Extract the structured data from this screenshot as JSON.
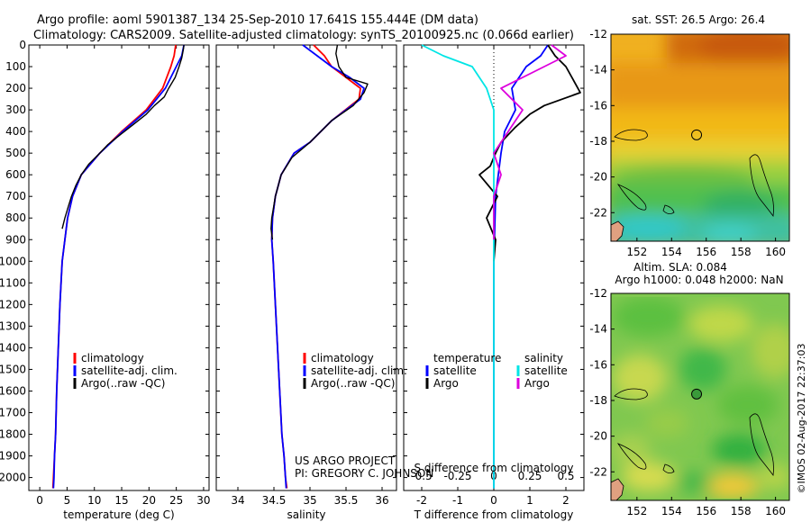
{
  "header": {
    "line1": "Argo profile: aoml 5901387_134 25-Sep-2010 17.641S 155.444E (DM data)",
    "line2": "Climatology: CARS2009. Satellite-adjusted climatology: synTS_20100925.nc (0.066d earlier)"
  },
  "colors": {
    "climatology": "#ff0000",
    "satellite": "#0000ff",
    "argo": "#000000",
    "sat_salinity": "#00e5e5",
    "argo_salinity": "#dd00dd"
  },
  "legends": {
    "climatology": "climatology",
    "satellite_adj": "satellite-adj. clim.",
    "argo_raw": "Argo(..raw -QC)",
    "temperature": "temperature",
    "salinity": "salinity",
    "satellite": "satellite",
    "argo": "Argo"
  },
  "credits": {
    "project": "US ARGO PROJECT",
    "pi": "PI: GREGORY C. JOHNSON",
    "stamp": "©IMOS 02-Aug-2017 22:37:03"
  },
  "chart_data": [
    {
      "type": "line",
      "title": "",
      "xlabel": "temperature (deg C)",
      "ylabel": "",
      "xlim": [
        -2,
        31
      ],
      "ylim": [
        2060,
        0
      ],
      "xticks": [
        0,
        5,
        10,
        15,
        20,
        25,
        30
      ],
      "yticks": [
        0,
        100,
        200,
        300,
        400,
        500,
        600,
        700,
        800,
        900,
        1000,
        1100,
        1200,
        1300,
        1400,
        1500,
        1600,
        1700,
        1800,
        1900,
        2000
      ],
      "series": [
        {
          "name": "climatology",
          "color": "#ff0000",
          "x": [
            24.9,
            24.6,
            24.0,
            22.5,
            19.5,
            15.0,
            11.0,
            7.6,
            6.0,
            5.1,
            4.6,
            4.1,
            3.7,
            3.4,
            3.1,
            2.9,
            2.7,
            2.5,
            2.4
          ],
          "y": [
            0,
            50,
            100,
            200,
            300,
            400,
            500,
            600,
            700,
            800,
            900,
            1000,
            1200,
            1400,
            1600,
            1800,
            1900,
            2000,
            2050
          ]
        },
        {
          "name": "satellite-adj. clim.",
          "color": "#0000ff",
          "x": [
            26.4,
            26.0,
            25.0,
            23.0,
            19.8,
            15.2,
            11.0,
            7.6,
            6.0,
            5.1,
            4.6,
            4.1,
            3.7,
            3.4,
            3.1,
            2.9,
            2.7,
            2.6,
            2.5
          ],
          "y": [
            0,
            50,
            100,
            200,
            300,
            400,
            500,
            600,
            700,
            800,
            900,
            1000,
            1200,
            1400,
            1600,
            1800,
            1900,
            2000,
            2050
          ]
        },
        {
          "name": "Argo(..raw -QC)",
          "color": "#000000",
          "x": [
            26.4,
            26.3,
            26.0,
            25.5,
            24.8,
            23.6,
            22.8,
            21.0,
            19.5,
            17.0,
            15.0,
            12.5,
            11.0,
            9.0,
            7.6,
            6.6,
            5.8,
            5.2,
            4.6,
            4.1
          ],
          "y": [
            0,
            20,
            60,
            100,
            150,
            200,
            240,
            280,
            320,
            370,
            410,
            460,
            500,
            550,
            600,
            650,
            700,
            750,
            800,
            850
          ]
        }
      ]
    },
    {
      "type": "line",
      "title": "",
      "xlabel": "salinity",
      "ylabel": "",
      "xlim": [
        33.7,
        36.2
      ],
      "ylim": [
        2060,
        0
      ],
      "xticks": [
        34,
        34.5,
        35,
        35.5,
        36
      ],
      "series": [
        {
          "name": "climatology",
          "color": "#ff0000",
          "x": [
            35.05,
            35.2,
            35.3,
            35.5,
            35.7,
            35.68,
            35.3,
            35.0,
            34.78,
            34.6,
            34.52,
            34.48,
            34.47,
            34.49,
            34.52,
            34.55,
            34.58,
            34.61,
            34.64,
            34.66,
            34.68
          ],
          "y": [
            0,
            50,
            100,
            150,
            200,
            250,
            350,
            450,
            500,
            600,
            700,
            800,
            900,
            1000,
            1200,
            1400,
            1600,
            1800,
            1900,
            2000,
            2050
          ]
        },
        {
          "name": "satellite-adj. clim.",
          "color": "#0000ff",
          "x": [
            34.9,
            35.1,
            35.3,
            35.55,
            35.75,
            35.7,
            35.3,
            35.0,
            34.78,
            34.6,
            34.52,
            34.48,
            34.47,
            34.49,
            34.52,
            34.55,
            34.58,
            34.61,
            34.64,
            34.66,
            34.67
          ],
          "y": [
            0,
            50,
            100,
            150,
            200,
            250,
            350,
            450,
            500,
            600,
            700,
            800,
            900,
            1000,
            1200,
            1400,
            1600,
            1800,
            1900,
            2000,
            2050
          ]
        },
        {
          "name": "Argo(..raw -QC)",
          "color": "#000000",
          "x": [
            35.38,
            35.36,
            35.4,
            35.5,
            35.8,
            35.75,
            35.6,
            35.3,
            35.0,
            34.75,
            34.6,
            34.52,
            34.47,
            34.46,
            34.48
          ],
          "y": [
            0,
            40,
            100,
            150,
            180,
            220,
            280,
            350,
            450,
            520,
            600,
            700,
            800,
            850,
            900
          ]
        }
      ]
    },
    {
      "type": "line",
      "title": "",
      "xlabel": "T difference from climatology",
      "xlabel_top": "S difference from climatology",
      "ylabel": "",
      "xlim_T": [
        -2.5,
        2.5
      ],
      "xticks_T": [
        -2,
        -1,
        0,
        1,
        2
      ],
      "xlim_S": [
        -0.625,
        0.625
      ],
      "xticks_S": [
        -0.5,
        -0.25,
        0,
        0.25,
        0.5
      ],
      "xticklabels_S": [
        "-0.5",
        "-0.25",
        "0",
        "0.25",
        "0.5"
      ],
      "ylim": [
        2060,
        0
      ],
      "series": [
        {
          "name": "temperature satellite",
          "color": "#0000ff",
          "axis": "T",
          "x": [
            1.5,
            1.3,
            0.9,
            0.5,
            0.6,
            0.3,
            0.2,
            0.05,
            0.0,
            0.0,
            0.0,
            0.0
          ],
          "y": [
            0,
            50,
            100,
            200,
            300,
            400,
            500,
            700,
            1000,
            1400,
            1800,
            2050
          ]
        },
        {
          "name": "temperature Argo",
          "color": "#000000",
          "axis": "T",
          "x": [
            1.5,
            1.7,
            2.0,
            2.4,
            1.4,
            1.0,
            0.6,
            0.2,
            0.05,
            -0.1,
            -0.4,
            0.1,
            -0.2,
            0.05,
            0.0
          ],
          "y": [
            0,
            50,
            100,
            220,
            280,
            320,
            380,
            450,
            500,
            560,
            600,
            700,
            800,
            900,
            1000
          ]
        },
        {
          "name": "salinity satellite",
          "color": "#00e5e5",
          "axis": "S",
          "x": [
            -0.5,
            -0.35,
            -0.15,
            -0.05,
            0.0,
            0.0,
            0.0,
            0.0,
            0.0
          ],
          "y": [
            0,
            50,
            100,
            200,
            300,
            500,
            800,
            1200,
            2050
          ]
        },
        {
          "name": "salinity Argo",
          "color": "#dd00dd",
          "axis": "S",
          "x": [
            0.4,
            0.5,
            0.35,
            0.05,
            0.2,
            0.1,
            0.0,
            0.05,
            0.0,
            0.0
          ],
          "y": [
            0,
            50,
            100,
            200,
            300,
            400,
            500,
            600,
            700,
            900
          ]
        }
      ]
    },
    {
      "type": "heatmap",
      "title": "sat. SST: 26.5  Argo: 26.4",
      "xlim": [
        150.5,
        160.8
      ],
      "ylim": [
        -23.6,
        -12
      ],
      "xticks": [
        152,
        154,
        156,
        158,
        160
      ],
      "yticks": [
        -12,
        -14,
        -16,
        -18,
        -20,
        -22
      ],
      "float_position": {
        "lon": 155.444,
        "lat": -17.641
      }
    },
    {
      "type": "heatmap",
      "title": "Altim. SLA: 0.084",
      "subtitle": "Argo h1000: 0.048  h2000: NaN",
      "xlim": [
        150.5,
        160.8
      ],
      "ylim": [
        -23.6,
        -12
      ],
      "xticks": [
        152,
        154,
        156,
        158,
        160
      ],
      "yticks": [
        -12,
        -14,
        -16,
        -18,
        -20,
        -22
      ],
      "float_position": {
        "lon": 155.444,
        "lat": -17.641
      }
    }
  ]
}
